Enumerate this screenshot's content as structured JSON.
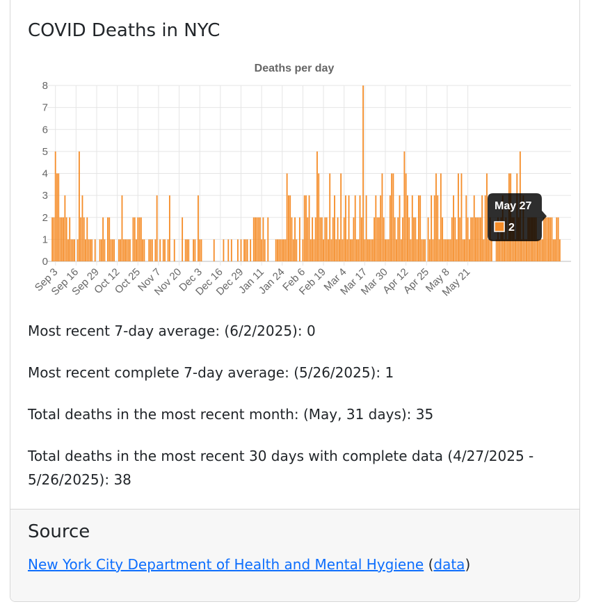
{
  "header": {
    "title": "COVID Deaths in NYC"
  },
  "chart_data": {
    "type": "bar",
    "title": "Deaths per day",
    "ylim": [
      0,
      8
    ],
    "yticks": [
      0,
      1,
      2,
      3,
      4,
      5,
      6,
      7,
      8
    ],
    "grid": true,
    "bar_color": "#f58d29",
    "x_tick_labels": [
      "Sep 3",
      "Sep 16",
      "Sep 29",
      "Oct 12",
      "Oct 25",
      "Nov 7",
      "Nov 20",
      "Dec 3",
      "Dec 16",
      "Dec 29",
      "Jan 11",
      "Jan 24",
      "Feb 6",
      "Feb 19",
      "Mar 4",
      "Mar 17",
      "Mar 30",
      "Apr 12",
      "Apr 25",
      "May 8",
      "May 21"
    ],
    "start_date": "2024-09-01",
    "values": [
      2,
      2,
      5,
      4,
      4,
      2,
      2,
      2,
      3,
      2,
      1,
      2,
      1,
      1,
      1,
      0,
      1,
      5,
      2,
      3,
      2,
      1,
      2,
      1,
      1,
      1,
      0,
      1,
      0,
      0,
      1,
      1,
      2,
      1,
      0,
      2,
      2,
      1,
      1,
      1,
      0,
      0,
      1,
      1,
      3,
      1,
      1,
      1,
      1,
      1,
      0,
      2,
      2,
      1,
      2,
      2,
      2,
      1,
      1,
      0,
      0,
      1,
      1,
      1,
      0,
      1,
      3,
      0,
      1,
      0,
      1,
      1,
      0,
      1,
      3,
      0,
      0,
      1,
      0,
      0,
      0,
      0,
      2,
      0,
      1,
      1,
      1,
      0,
      0,
      1,
      1,
      0,
      3,
      1,
      1,
      0,
      0,
      0,
      0,
      0,
      0,
      0,
      1,
      0,
      0,
      0,
      0,
      0,
      1,
      0,
      0,
      1,
      0,
      1,
      0,
      0,
      0,
      1,
      0,
      1,
      0,
      1,
      1,
      1,
      0,
      1,
      0,
      2,
      2,
      2,
      2,
      2,
      1,
      2,
      1,
      0,
      2,
      0,
      0,
      0,
      0,
      1,
      1,
      1,
      1,
      1,
      1,
      1,
      4,
      3,
      3,
      2,
      1,
      2,
      1,
      0,
      2,
      0,
      1,
      3,
      3,
      2,
      3,
      1,
      2,
      1,
      2,
      5,
      4,
      2,
      2,
      1,
      2,
      2,
      1,
      4,
      1,
      2,
      3,
      1,
      2,
      1,
      4,
      1,
      2,
      3,
      1,
      3,
      1,
      1,
      2,
      3,
      1,
      1,
      3,
      2,
      8,
      1,
      3,
      1,
      1,
      1,
      1,
      2,
      3,
      2,
      2,
      3,
      4,
      2,
      1,
      1,
      1,
      3,
      4,
      4,
      2,
      1,
      2,
      3,
      1,
      2,
      5,
      4,
      3,
      2,
      1,
      3,
      2,
      2,
      1,
      3,
      3,
      1,
      1,
      1,
      0,
      2,
      1,
      3,
      1,
      3,
      4,
      3,
      1,
      4,
      2,
      1,
      1,
      1,
      1,
      1,
      2,
      3,
      2,
      1,
      4,
      2,
      4,
      1,
      1,
      3,
      2,
      1,
      2,
      2,
      3,
      2,
      2,
      2,
      2,
      3,
      1,
      3,
      4,
      1,
      2,
      1,
      0,
      0,
      1,
      2,
      1,
      2,
      3,
      1,
      2,
      1,
      4,
      4,
      2,
      2,
      1,
      4,
      2,
      5,
      1,
      3,
      1,
      1,
      2,
      2,
      2,
      2,
      2,
      2,
      1,
      1,
      1,
      1,
      2,
      2,
      2,
      2,
      2,
      2,
      1,
      1,
      2,
      2,
      1
    ],
    "tooltip": {
      "title": "May 27",
      "value": "2"
    }
  },
  "stats": {
    "line1": "Most recent 7-day average: (6/2/2025): 0",
    "line2": "Most recent complete 7-day average: (5/26/2025): 1",
    "line3": "Total deaths in the most recent month: (May, 31 days): 35",
    "line4a": "Total deaths in the most recent 30 days with complete data (4/27/2025 -",
    "line4b": "5/26/2025): 38"
  },
  "source": {
    "title": "Source",
    "link_text": "New York City Department of Health and Mental Hygiene",
    "open_paren": "(",
    "data_link": "data",
    "close_paren": ")"
  }
}
